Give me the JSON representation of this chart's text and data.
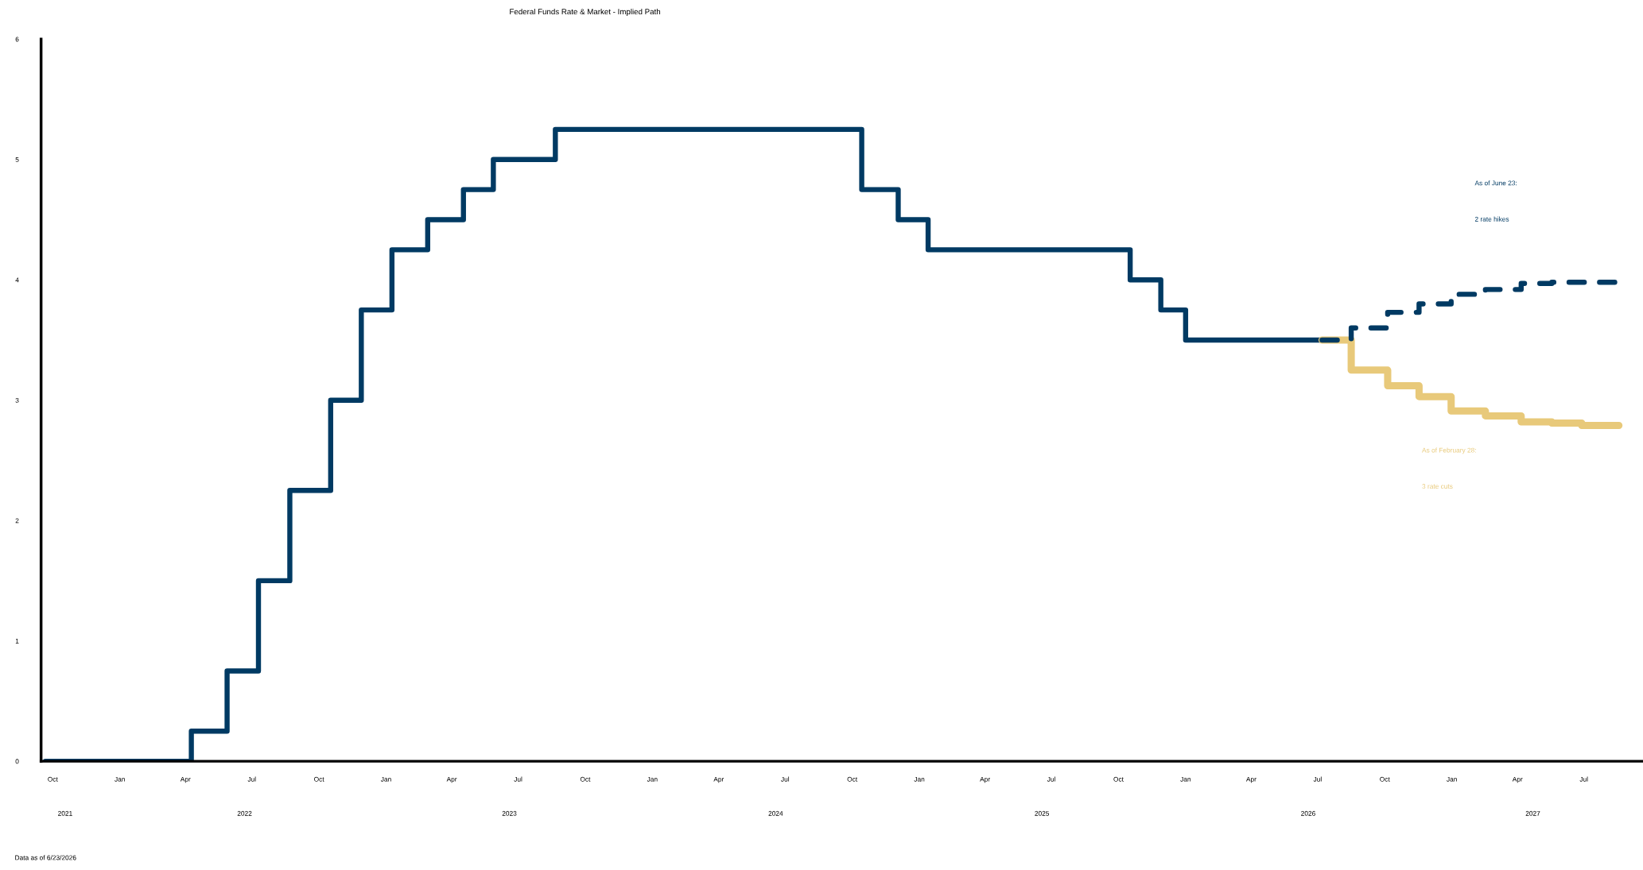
{
  "chart_data": {
    "type": "step",
    "title": "Federal Funds Rate & Market - Implied Path",
    "xlim": [
      "2021-09-15",
      "2027-09-20"
    ],
    "ylim": [
      0,
      6
    ],
    "yticks": [
      0,
      1,
      2,
      3,
      4,
      5,
      6
    ],
    "xticks": [
      {
        "value": "2021-10-01",
        "label": "Oct"
      },
      {
        "value": "2022-01-01",
        "label": "Jan"
      },
      {
        "value": "2022-04-01",
        "label": "Apr"
      },
      {
        "value": "2022-07-01",
        "label": "Jul"
      },
      {
        "value": "2022-10-01",
        "label": "Oct"
      },
      {
        "value": "2023-01-01",
        "label": "Jan"
      },
      {
        "value": "2023-04-01",
        "label": "Apr"
      },
      {
        "value": "2023-07-01",
        "label": "Jul"
      },
      {
        "value": "2023-10-01",
        "label": "Oct"
      },
      {
        "value": "2024-01-01",
        "label": "Jan"
      },
      {
        "value": "2024-04-01",
        "label": "Apr"
      },
      {
        "value": "2024-07-01",
        "label": "Jul"
      },
      {
        "value": "2024-10-01",
        "label": "Oct"
      },
      {
        "value": "2025-01-01",
        "label": "Jan"
      },
      {
        "value": "2025-04-01",
        "label": "Apr"
      },
      {
        "value": "2025-07-01",
        "label": "Jul"
      },
      {
        "value": "2025-10-01",
        "label": "Oct"
      },
      {
        "value": "2026-01-01",
        "label": "Jan"
      },
      {
        "value": "2026-04-01",
        "label": "Apr"
      },
      {
        "value": "2026-07-01",
        "label": "Jul"
      },
      {
        "value": "2026-10-01",
        "label": "Oct"
      },
      {
        "value": "2027-01-01",
        "label": "Jan"
      },
      {
        "value": "2027-04-01",
        "label": "Apr"
      },
      {
        "value": "2027-07-01",
        "label": "Jul"
      }
    ],
    "x2lim": [
      "2021-09-15",
      "2027-09-20"
    ],
    "x2ticks": [
      {
        "value": "2021-10-18",
        "label": "2021"
      },
      {
        "value": "2022-06-21",
        "label": "2022"
      },
      {
        "value": "2023-06-19",
        "label": "2023"
      },
      {
        "value": "2024-06-18",
        "label": "2024"
      },
      {
        "value": "2025-06-18",
        "label": "2025"
      },
      {
        "value": "2026-06-18",
        "label": "2026"
      },
      {
        "value": "2027-04-22",
        "label": "2027"
      }
    ],
    "grid": false,
    "legend": false,
    "series": [
      {
        "color": "#003a63",
        "line_style": "solid",
        "x": [
          "2021-09-21",
          "2022-04-09",
          "2022-05-28",
          "2022-07-10",
          "2022-08-22",
          "2022-10-17",
          "2022-11-28",
          "2023-01-09",
          "2023-02-27",
          "2023-04-17",
          "2023-05-28",
          "2023-08-21",
          "2024-10-14",
          "2024-12-03",
          "2025-01-13",
          "2025-10-17",
          "2025-11-28",
          "2026-01-01",
          "2026-07-11"
        ],
        "values": [
          0,
          0.25,
          0.75,
          1.5,
          2.25,
          3.0,
          3.75,
          4.25,
          4.5,
          4.75,
          5.0,
          5.25,
          4.75,
          4.5,
          4.25,
          4.0,
          3.75,
          3.5,
          3.5
        ]
      },
      {
        "color": "#e8c97a",
        "line_style": "solid",
        "x": [
          "2026-07-07",
          "2026-08-16",
          "2026-10-05",
          "2026-11-17",
          "2026-12-31",
          "2027-02-16",
          "2027-04-06",
          "2027-05-18",
          "2027-06-28",
          "2027-08-18"
        ],
        "values": [
          3.5,
          3.25,
          3.12,
          3.03,
          2.91,
          2.87,
          2.82,
          2.81,
          2.79,
          2.79
        ]
      },
      {
        "color": "#003a63",
        "line_style": "dashed",
        "x": [
          "2026-07-07",
          "2026-08-16",
          "2026-10-05",
          "2026-11-17",
          "2026-12-31",
          "2027-02-16",
          "2027-04-06",
          "2027-05-18",
          "2027-06-28",
          "2027-08-18"
        ],
        "values": [
          3.5,
          3.6,
          3.73,
          3.8,
          3.88,
          3.92,
          3.97,
          3.98,
          3.98,
          3.95
        ]
      }
    ],
    "annotations": [
      "As of June 23:",
      "2 rate hikes",
      "As of February 28:",
      "3 rate cuts",
      "Data as of 6/23/2026"
    ]
  }
}
